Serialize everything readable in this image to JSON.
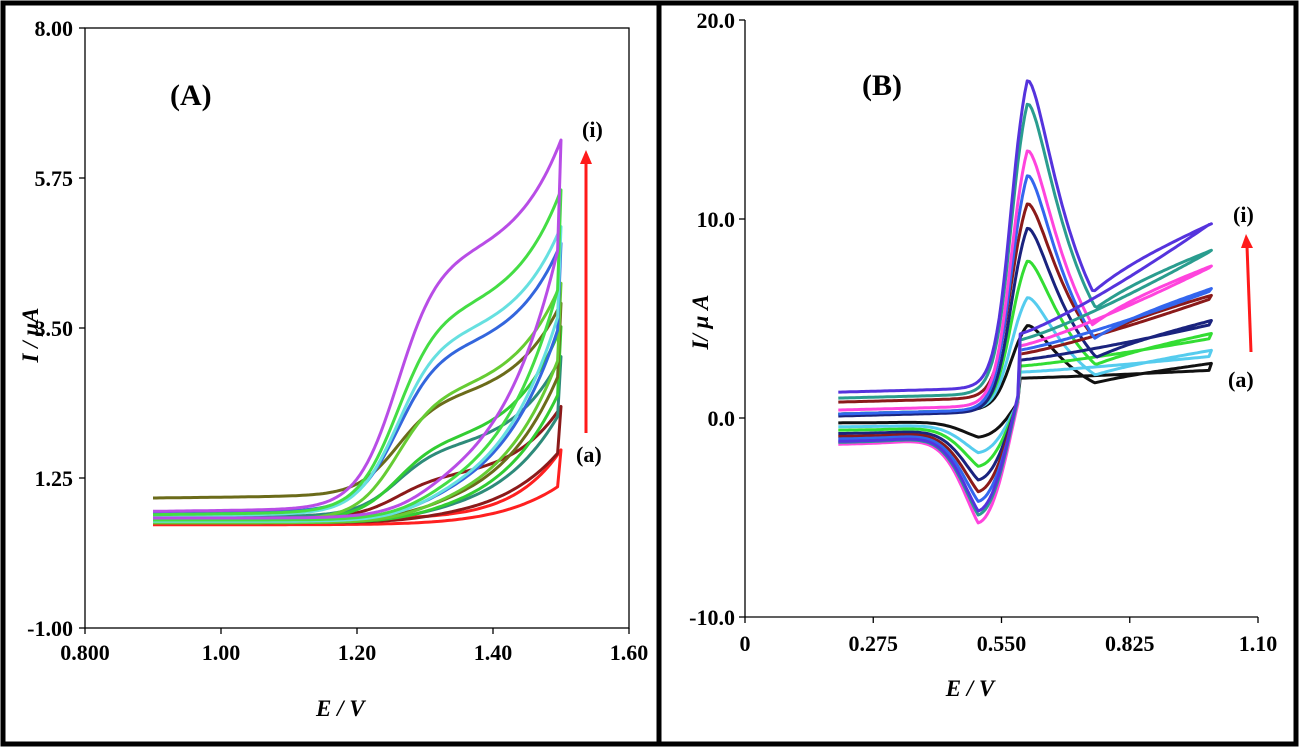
{
  "chart_data": [
    {
      "type": "line",
      "panel_label": "(A)",
      "xlabel": "E / V",
      "ylabel": "I / μA",
      "xlim": [
        0.8,
        1.6
      ],
      "ylim": [
        -1.0,
        8.0
      ],
      "x_ticks": [
        "0.800",
        "1.00",
        "1.20",
        "1.40",
        "1.60"
      ],
      "y_ticks": [
        "-1.00",
        "1.25",
        "3.50",
        "5.75",
        "8.00"
      ],
      "top_label": "(i)",
      "bottom_label": "(a)",
      "arrow_color": "#ff1a1a",
      "series": [
        {
          "color": "#ff2020",
          "peak": 0.0,
          "top": 1.6,
          "start": 0.6,
          "return": 0.55
        },
        {
          "color": "#8b1a1a",
          "peak": 0.6,
          "top": 2.25,
          "start": 0.62,
          "return": 0.58
        },
        {
          "color": "#2e8b7a",
          "peak": 1.0,
          "top": 3.0,
          "start": 0.65,
          "return": 0.6
        },
        {
          "color": "#32cd32",
          "peak": 1.15,
          "top": 3.45,
          "start": 0.6,
          "return": 0.58
        },
        {
          "color": "#6b6b1a",
          "peak": 1.45,
          "top": 3.8,
          "start": 0.95,
          "return": 0.62
        },
        {
          "color": "#66cc33",
          "peak": 1.9,
          "top": 4.1,
          "start": 0.6,
          "return": 0.58
        },
        {
          "color": "#3366dd",
          "peak": 2.4,
          "top": 4.7,
          "start": 0.72,
          "return": 0.62
        },
        {
          "color": "#66e0e0",
          "peak": 2.65,
          "top": 4.95,
          "start": 0.68,
          "return": 0.6
        },
        {
          "color": "#44dd44",
          "peak": 3.0,
          "top": 5.5,
          "start": 0.7,
          "return": 0.62
        },
        {
          "color": "#b84de6",
          "peak": 3.75,
          "top": 6.25,
          "start": 0.75,
          "return": 0.65
        }
      ]
    },
    {
      "type": "line",
      "panel_label": "(B)",
      "xlabel": "E / V",
      "ylabel": "I/ μ A",
      "xlim": [
        0,
        1.1
      ],
      "ylim": [
        -10.0,
        20.0
      ],
      "x_ticks": [
        "0",
        "0.275",
        "0.550",
        "0.825",
        "1.10"
      ],
      "y_ticks": [
        "-10.0",
        "0.0",
        "10.0",
        "20.0"
      ],
      "top_label": "(i)",
      "bottom_label": "(a)",
      "arrow_color": "#ff1a1a",
      "series": [
        {
          "color": "#111111",
          "ipa": 5.0,
          "ipc": -1.0,
          "start": 0.2,
          "end": 2.4,
          "rev": 2.0
        },
        {
          "color": "#55ccee",
          "ipa": 6.6,
          "ipc": -1.8,
          "start": 0.2,
          "end": 3.1,
          "rev": 2.3
        },
        {
          "color": "#33dd33",
          "ipa": 8.7,
          "ipc": -2.5,
          "start": 0.2,
          "end": 4.0,
          "rev": 2.6
        },
        {
          "color": "#1a237e",
          "ipa": 10.6,
          "ipc": -3.2,
          "start": 0.1,
          "end": 4.7,
          "rev": 2.9
        },
        {
          "color": "#8b1a1a",
          "ipa": 11.9,
          "ipc": -3.8,
          "start": 0.8,
          "end": 6.0,
          "rev": 3.2
        },
        {
          "color": "#3366ee",
          "ipa": 13.6,
          "ipc": -4.3,
          "start": 0.2,
          "end": 6.4,
          "rev": 3.4
        },
        {
          "color": "#ff44dd",
          "ipa": 15.0,
          "ipc": -5.4,
          "start": 0.4,
          "end": 7.6,
          "rev": 3.6
        },
        {
          "color": "#2a9d8f",
          "ipa": 17.6,
          "ipc": -5.0,
          "start": 1.0,
          "end": 8.4,
          "rev": 3.9
        },
        {
          "color": "#5533dd",
          "ipa": 18.9,
          "ipc": -4.8,
          "start": 1.3,
          "end": 9.8,
          "rev": 4.2
        }
      ]
    }
  ]
}
